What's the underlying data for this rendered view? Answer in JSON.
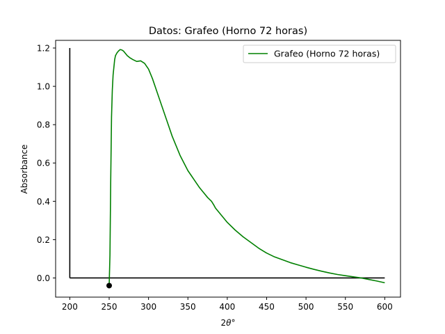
{
  "chart_data": {
    "type": "line",
    "title": "Datos: Grafeo (Horno 72 horas)",
    "xlabel_prefix": "2",
    "xlabel_symbol": "θ",
    "xlabel_suffix": "°",
    "ylabel": "Absorbance",
    "xlim": [
      182,
      620
    ],
    "ylim": [
      -0.1,
      1.24
    ],
    "xticks": [
      200,
      250,
      300,
      350,
      400,
      450,
      500,
      550,
      600
    ],
    "yticks": [
      0.0,
      0.2,
      0.4,
      0.6,
      0.8,
      1.0,
      1.2
    ],
    "ytick_labels": [
      "0.0",
      "0.2",
      "0.4",
      "0.6",
      "0.8",
      "1.0",
      "1.2"
    ],
    "grid": false,
    "legend_position": "top-right",
    "series": [
      {
        "name": "Grafeo (Horno 72 horas)",
        "color": "#008000",
        "x": [
          250,
          251,
          252,
          253,
          254,
          255,
          256,
          257,
          258,
          260,
          262,
          264,
          266,
          268,
          270,
          273,
          276,
          280,
          285,
          290,
          295,
          300,
          305,
          310,
          315,
          320,
          325,
          330,
          335,
          340,
          345,
          350,
          355,
          360,
          365,
          370,
          375,
          380,
          383,
          385,
          390,
          395,
          400,
          410,
          420,
          430,
          440,
          450,
          460,
          470,
          480,
          490,
          500,
          510,
          520,
          530,
          540,
          550,
          560,
          570,
          580,
          590,
          600
        ],
        "y": [
          -0.04,
          0.12,
          0.52,
          0.84,
          0.98,
          1.06,
          1.1,
          1.14,
          1.16,
          1.175,
          1.185,
          1.192,
          1.19,
          1.185,
          1.175,
          1.16,
          1.15,
          1.14,
          1.13,
          1.133,
          1.12,
          1.09,
          1.04,
          0.98,
          0.92,
          0.86,
          0.8,
          0.74,
          0.69,
          0.64,
          0.6,
          0.56,
          0.53,
          0.5,
          0.47,
          0.445,
          0.42,
          0.4,
          0.38,
          0.365,
          0.34,
          0.315,
          0.29,
          0.25,
          0.215,
          0.185,
          0.155,
          0.13,
          0.11,
          0.095,
          0.08,
          0.068,
          0.056,
          0.045,
          0.035,
          0.026,
          0.018,
          0.012,
          0.006,
          0.0,
          -0.008,
          -0.016,
          -0.025
        ]
      }
    ],
    "axis_lines": [
      {
        "x": [
          200,
          200
        ],
        "y": [
          0.0,
          1.2
        ],
        "color": "#000000"
      },
      {
        "x": [
          200,
          600
        ],
        "y": [
          0.0,
          0.0
        ],
        "color": "#000000"
      }
    ],
    "marker_point": {
      "x": 250,
      "y": -0.04,
      "color": "#000000"
    }
  }
}
